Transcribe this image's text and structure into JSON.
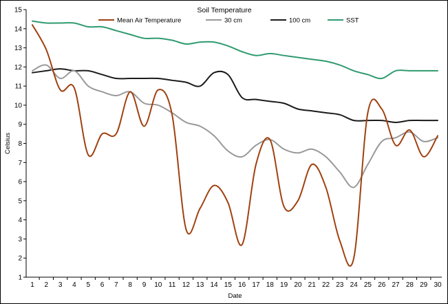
{
  "chart_data": {
    "type": "line",
    "title": "Soil Temperature",
    "xlabel": "Date",
    "ylabel": "Celsius",
    "ylim": [
      1,
      15
    ],
    "yticks": [
      1,
      2,
      3,
      4,
      5,
      6,
      7,
      8,
      9,
      10,
      11,
      12,
      13,
      14,
      15
    ],
    "x": [
      1,
      2,
      3,
      4,
      5,
      6,
      7,
      8,
      9,
      10,
      11,
      12,
      13,
      14,
      15,
      16,
      17,
      18,
      19,
      20,
      21,
      22,
      23,
      24,
      25,
      26,
      27,
      28,
      29,
      30
    ],
    "grid": false,
    "legend": "top",
    "series": [
      {
        "name": "Mean Air Temperature",
        "color": "#a0400f",
        "values": [
          14.2,
          12.9,
          10.8,
          10.9,
          7.4,
          8.5,
          8.5,
          10.7,
          8.9,
          10.8,
          9.5,
          3.5,
          4.6,
          5.8,
          4.9,
          2.7,
          6.9,
          8.2,
          4.7,
          5.0,
          6.9,
          5.7,
          2.9,
          2.0,
          9.6,
          9.8,
          7.9,
          8.7,
          7.3,
          8.4
        ]
      },
      {
        "name": "30 cm",
        "color": "#999999",
        "values": [
          11.8,
          12.1,
          11.4,
          11.8,
          11.0,
          10.7,
          10.5,
          10.7,
          10.1,
          10.0,
          9.6,
          9.1,
          8.9,
          8.4,
          7.6,
          7.3,
          7.9,
          8.2,
          7.7,
          7.5,
          7.7,
          7.3,
          6.5,
          5.7,
          6.9,
          8.1,
          8.3,
          8.6,
          8.1,
          8.3
        ]
      },
      {
        "name": "100 cm",
        "color": "#1a1a1a",
        "values": [
          11.7,
          11.8,
          11.9,
          11.8,
          11.8,
          11.6,
          11.4,
          11.4,
          11.4,
          11.4,
          11.3,
          11.2,
          11.0,
          11.7,
          11.6,
          10.4,
          10.3,
          10.2,
          10.1,
          9.8,
          9.7,
          9.6,
          9.5,
          9.2,
          9.2,
          9.2,
          9.1,
          9.2,
          9.2,
          9.2
        ]
      },
      {
        "name": "SST",
        "color": "#2e9a6e",
        "values": [
          14.4,
          14.3,
          14.3,
          14.3,
          14.1,
          14.1,
          13.9,
          13.7,
          13.5,
          13.5,
          13.4,
          13.2,
          13.3,
          13.3,
          13.1,
          12.8,
          12.6,
          12.7,
          12.6,
          12.5,
          12.4,
          12.3,
          12.1,
          11.8,
          11.6,
          11.4,
          11.8,
          11.8,
          11.8,
          11.8
        ]
      }
    ]
  }
}
